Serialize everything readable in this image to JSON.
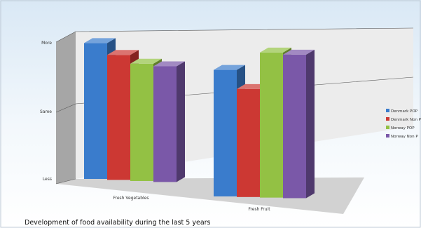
{
  "chart_data": {
    "type": "bar",
    "title": "Development of food availability during the last 5 years",
    "categories": [
      "Fresh Vegetables",
      "Fresh Fruit"
    ],
    "y_tick_labels": [
      "Less",
      "Same",
      "More"
    ],
    "ylim": [
      0,
      1
    ],
    "series": [
      {
        "name": "Denmark   POP",
        "color": "#3a7ccc",
        "values": [
          0.88,
          0.82
        ]
      },
      {
        "name": "Denmark   Non P",
        "color": "#cc3833",
        "values": [
          0.81,
          0.7
        ]
      },
      {
        "name": "Norway   POP",
        "color": "#93c144",
        "values": [
          0.76,
          0.94
        ]
      },
      {
        "name": "Norway   Non P",
        "color": "#7a58a8",
        "values": [
          0.75,
          0.93
        ]
      }
    ],
    "legend_position": "right",
    "grid": true
  }
}
